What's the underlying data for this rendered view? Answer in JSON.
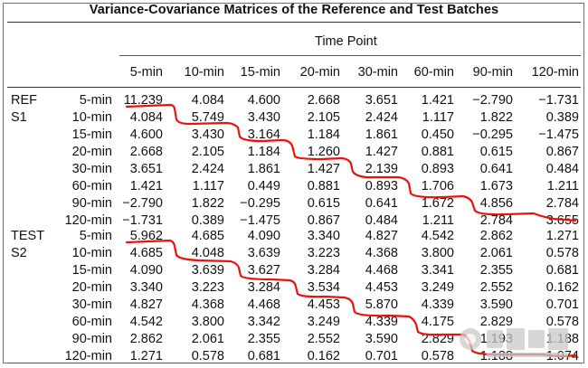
{
  "title": "Variance-Covariance Matrices of the Reference and Test Batches",
  "time_point_label": "Time Point",
  "columns": [
    "5-min",
    "10-min",
    "15-min",
    "20-min",
    "30-min",
    "60-min",
    "90-min",
    "120-min"
  ],
  "groups": [
    {
      "label_line1": "REF",
      "label_line2": "S1",
      "rows": [
        {
          "label": "5-min",
          "values": [
            "11.239",
            "4.084",
            "4.600",
            "2.668",
            "3.651",
            "1.421",
            "−2.790",
            "−1.731"
          ]
        },
        {
          "label": "10-min",
          "values": [
            "4.084",
            "5.749",
            "3.430",
            "2.105",
            "2.424",
            "1.117",
            "1.822",
            "0.389"
          ]
        },
        {
          "label": "15-min",
          "values": [
            "4.600",
            "3.430",
            "3.164",
            "1.184",
            "1.861",
            "0.450",
            "−0.295",
            "−1.475"
          ]
        },
        {
          "label": "20-min",
          "values": [
            "2.668",
            "2.105",
            "1.184",
            "1.260",
            "1.427",
            "0.881",
            "0.615",
            "0.867"
          ]
        },
        {
          "label": "30-min",
          "values": [
            "3.651",
            "2.424",
            "1.861",
            "1.427",
            "2.139",
            "0.893",
            "0.641",
            "0.484"
          ]
        },
        {
          "label": "60-min",
          "values": [
            "1.421",
            "1.117",
            "0.449",
            "0.881",
            "0.893",
            "1.706",
            "1.673",
            "1.211"
          ]
        },
        {
          "label": "90-min",
          "values": [
            "−2.790",
            "1.822",
            "−0.295",
            "0.615",
            "0.641",
            "1.672",
            "4.856",
            "2.784"
          ]
        },
        {
          "label": "120-min",
          "values": [
            "−1.731",
            "0.389",
            "−1.475",
            "0.867",
            "0.484",
            "1.211",
            "2.784",
            "3.655"
          ]
        }
      ]
    },
    {
      "label_line1": "TEST",
      "label_line2": "S2",
      "rows": [
        {
          "label": "5-min",
          "values": [
            "5.962",
            "4.685",
            "4.090",
            "3.340",
            "4.827",
            "4.542",
            "2.862",
            "1.271"
          ]
        },
        {
          "label": "10-min",
          "values": [
            "4.685",
            "4.048",
            "3.639",
            "3.223",
            "4.368",
            "3.800",
            "2.061",
            "0.578"
          ]
        },
        {
          "label": "15-min",
          "values": [
            "4.090",
            "3.639",
            "3.627",
            "3.284",
            "4.468",
            "3.341",
            "2.355",
            "0.681"
          ]
        },
        {
          "label": "20-min",
          "values": [
            "3.340",
            "3.223",
            "3.284",
            "3.534",
            "4.453",
            "3.249",
            "2.552",
            "0.162"
          ]
        },
        {
          "label": "30-min",
          "values": [
            "4.827",
            "4.368",
            "4.468",
            "4.453",
            "5.870",
            "4.339",
            "3.590",
            "0.701"
          ]
        },
        {
          "label": "60-min",
          "values": [
            "4.542",
            "3.800",
            "3.342",
            "3.249",
            "4.339",
            "4.175",
            "2.829",
            "0.578"
          ]
        },
        {
          "label": "90-min",
          "values": [
            "2.862",
            "2.061",
            "2.355",
            "2.552",
            "3.590",
            "2.829",
            "1.193",
            "1.188"
          ]
        },
        {
          "label": "120-min",
          "values": [
            "1.271",
            "0.578",
            "0.681",
            "0.162",
            "0.701",
            "0.578",
            "1.188",
            "1.074"
          ]
        }
      ]
    }
  ],
  "colors": {
    "markup_stroke": "#e8140c",
    "rule": "#333333",
    "frame": "#6f6f6f"
  }
}
